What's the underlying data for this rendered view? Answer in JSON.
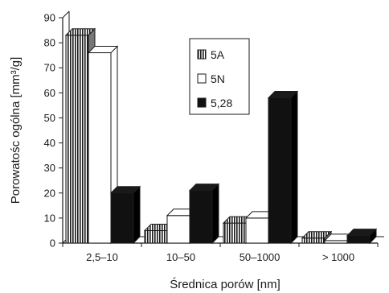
{
  "chart_data": {
    "type": "bar",
    "style": "3d-clustered",
    "categories": [
      "2,5–10",
      "10–50",
      "50–1000",
      "> 1000"
    ],
    "series": [
      {
        "name": "5A",
        "values": [
          83,
          5,
          8,
          2
        ],
        "fill": "hatched-gray"
      },
      {
        "name": "5N",
        "values": [
          76,
          11,
          10,
          1
        ],
        "fill": "white"
      },
      {
        "name": "5,28",
        "values": [
          20,
          21,
          58,
          3
        ],
        "fill": "black"
      }
    ],
    "xlabel": "Średnica porów [nm]",
    "ylabel": "Porowatośc ogólna [mm³/g]",
    "ylim": [
      0,
      90
    ],
    "yticks": [
      "0",
      "10",
      "20",
      "30",
      "40",
      "50",
      "60",
      "70",
      "80",
      "90"
    ],
    "grid": false,
    "legend_position": "top-center"
  }
}
